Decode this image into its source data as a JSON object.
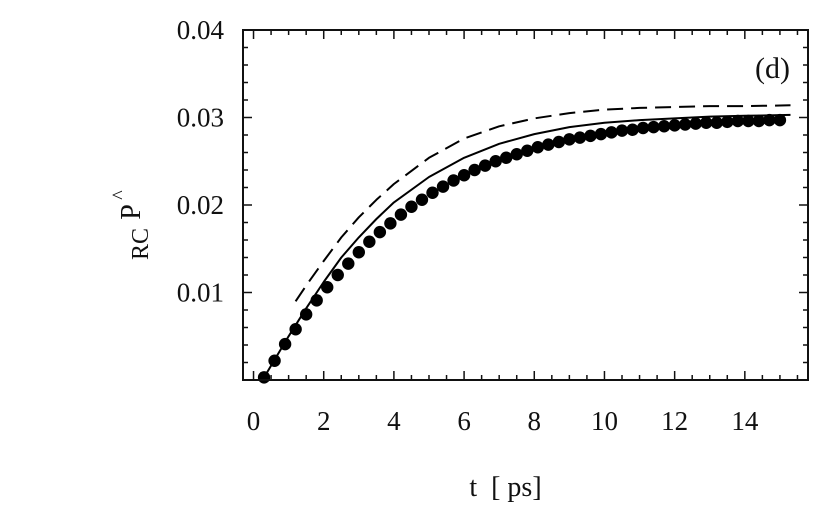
{
  "chart_data": {
    "type": "line",
    "panel_label": "(d)",
    "xlabel": "t  [ ps]",
    "ylabel_main": "P",
    "ylabel_hat": "^",
    "ylabel_sub": "RC",
    "xlim": [
      -0.3,
      15.8
    ],
    "ylim": [
      0.0,
      0.04
    ],
    "xticks": [
      0,
      2,
      4,
      6,
      8,
      10,
      12,
      14
    ],
    "xtick_labels": [
      "0",
      "2",
      "4",
      "6",
      "8",
      "10",
      "12",
      "14"
    ],
    "yticks": [
      0.01,
      0.02,
      0.03,
      0.04
    ],
    "ytick_labels": [
      "0.01",
      "0.02",
      "0.03",
      "0.04"
    ],
    "grid": false,
    "legend": "none",
    "series": [
      {
        "style": "dots",
        "x": [
          0.3,
          0.6,
          0.9,
          1.2,
          1.5,
          1.8,
          2.1,
          2.4,
          2.7,
          3.0,
          3.3,
          3.6,
          3.9,
          4.2,
          4.5,
          4.8,
          5.1,
          5.4,
          5.7,
          6.0,
          6.3,
          6.6,
          6.9,
          7.2,
          7.5,
          7.8,
          8.1,
          8.4,
          8.7,
          9.0,
          9.3,
          9.6,
          9.9,
          10.2,
          10.5,
          10.8,
          11.1,
          11.4,
          11.7,
          12.0,
          12.3,
          12.6,
          12.9,
          13.2,
          13.5,
          13.8,
          14.1,
          14.4,
          14.7,
          15.0
        ],
        "y": [
          0.0003,
          0.0022,
          0.0041,
          0.0058,
          0.0075,
          0.0091,
          0.0106,
          0.012,
          0.0133,
          0.0146,
          0.0158,
          0.0169,
          0.0179,
          0.0189,
          0.0198,
          0.0206,
          0.0214,
          0.0221,
          0.0228,
          0.0234,
          0.024,
          0.0245,
          0.025,
          0.0254,
          0.0258,
          0.0262,
          0.0266,
          0.0269,
          0.0272,
          0.0275,
          0.0277,
          0.0279,
          0.0281,
          0.0283,
          0.0285,
          0.0286,
          0.0288,
          0.0289,
          0.029,
          0.0291,
          0.0292,
          0.0293,
          0.0294,
          0.0294,
          0.0295,
          0.0296,
          0.0296,
          0.0296,
          0.0297,
          0.0297
        ]
      },
      {
        "style": "solid",
        "x": [
          0.3,
          1.0,
          1.5,
          2.0,
          2.5,
          3.0,
          3.5,
          4.0,
          5.0,
          6.0,
          7.0,
          8.0,
          9.0,
          10.0,
          11.0,
          12.0,
          13.0,
          14.0,
          15.3
        ],
        "y": [
          0.0003,
          0.005,
          0.0082,
          0.0112,
          0.014,
          0.0163,
          0.0184,
          0.0203,
          0.0232,
          0.0254,
          0.027,
          0.0281,
          0.0289,
          0.0294,
          0.0297,
          0.0299,
          0.0301,
          0.0302,
          0.0303
        ]
      },
      {
        "style": "dashed",
        "x": [
          1.2,
          1.5,
          2.0,
          2.5,
          3.0,
          3.5,
          4.0,
          5.0,
          6.0,
          7.0,
          8.0,
          9.0,
          10.0,
          11.0,
          12.0,
          13.0,
          14.0,
          15.3
        ],
        "y": [
          0.009,
          0.0108,
          0.0136,
          0.0163,
          0.0186,
          0.0206,
          0.0224,
          0.0254,
          0.0276,
          0.029,
          0.0299,
          0.0305,
          0.0309,
          0.0311,
          0.0312,
          0.0313,
          0.0313,
          0.0314
        ]
      }
    ]
  }
}
